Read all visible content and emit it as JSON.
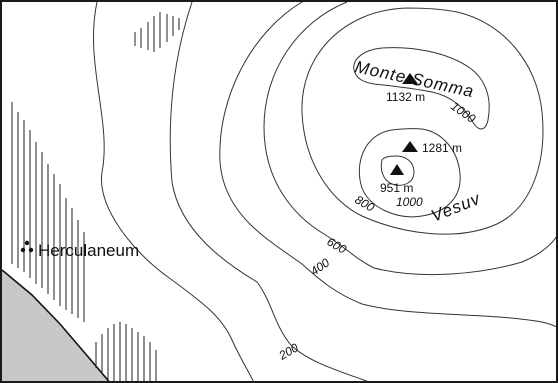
{
  "peaks": [
    {
      "name": "monte-somma",
      "elevation": "1132 m"
    },
    {
      "name": "vesuv-summit",
      "elevation": "1281 m"
    },
    {
      "name": "crater",
      "elevation": "951 m"
    }
  ],
  "labels": {
    "monte_somma": "Monte Somma",
    "vesuv": "Vesuv",
    "herculaneum": "Herculaneum"
  },
  "contours": {
    "c1000_somma": "1000",
    "c1000_vesuv": "1000",
    "c800": "800",
    "c600": "600",
    "c400": "400",
    "c200": "200"
  },
  "colors": {
    "sea": "#c8c8c8",
    "line": "#333333",
    "ink": "#111111"
  }
}
